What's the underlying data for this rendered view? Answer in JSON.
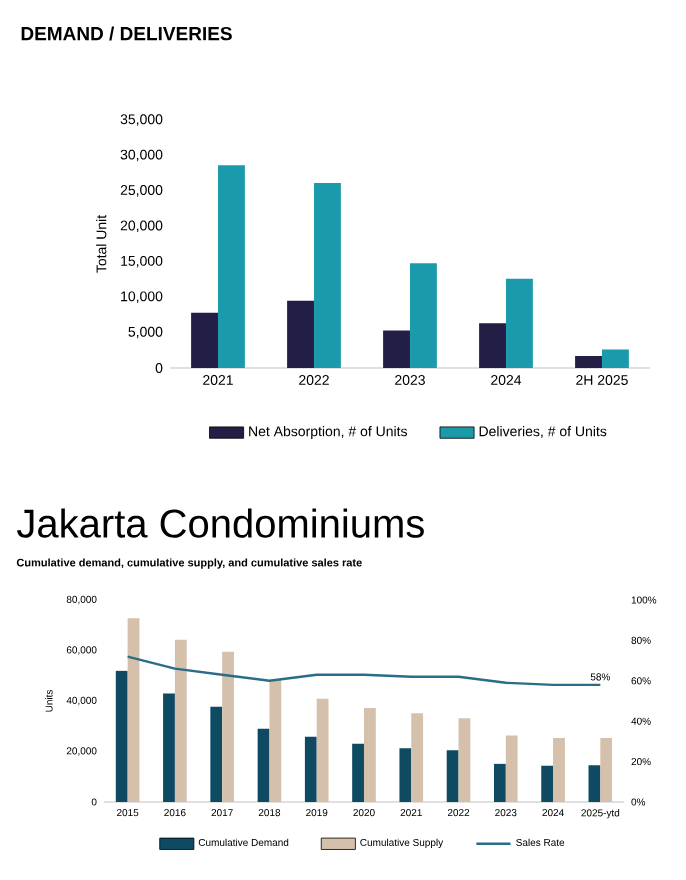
{
  "chart_data": [
    {
      "type": "bar",
      "title": "DEMAND / DELIVERIES",
      "ylabel": "Total Unit",
      "categories": [
        "2021",
        "2022",
        "2023",
        "2024",
        "2H 2025"
      ],
      "series": [
        {
          "name": "Net Absorption, # of Units",
          "color": "#221e45",
          "values": [
            7800,
            9500,
            5300,
            6300,
            1700
          ]
        },
        {
          "name": "Deliveries, # of Units",
          "color": "#1a9aaa",
          "values": [
            28600,
            26100,
            14800,
            12600,
            2600
          ]
        }
      ],
      "ylim": [
        0,
        35000
      ],
      "yticks": [
        0,
        {
          "value": 5000,
          "label": "5,000"
        },
        {
          "value": 10000,
          "label": "10,000"
        },
        {
          "value": 15000,
          "label": "15,000"
        },
        {
          "value": 20000,
          "label": "20,000"
        },
        {
          "value": 25000,
          "label": "25,000"
        },
        {
          "value": 30000,
          "label": "30,000"
        },
        {
          "value": 35000,
          "label": "35,000"
        }
      ],
      "legend": "bottom"
    },
    {
      "type": "bar",
      "title": "Jakarta Condominiums",
      "subtitle": "Cumulative demand, cumulative supply, and cumulative sales rate",
      "ylabel": "Units",
      "categories": [
        "2015",
        "2016",
        "2017",
        "2018",
        "2019",
        "2020",
        "2021",
        "2022",
        "2023",
        "2024",
        "2025-ytd"
      ],
      "series": [
        {
          "name": "Cumulative Demand",
          "color": "#0f4a63",
          "values": [
            52000,
            43000,
            37700,
            29000,
            25800,
            23100,
            21300,
            20500,
            15100,
            14400,
            14600
          ]
        },
        {
          "name": "Cumulative Supply",
          "color": "#d5c0ac",
          "values": [
            72800,
            64300,
            59500,
            48400,
            40900,
            37200,
            35100,
            33200,
            26300,
            25300,
            25300
          ]
        },
        {
          "name": "Sales Rate",
          "type": "line",
          "axis": "y2",
          "color": "#2a6d87",
          "values": [
            72,
            66,
            63,
            60,
            63,
            63,
            62,
            62,
            59,
            58,
            58
          ]
        }
      ],
      "ylim": [
        0,
        80000
      ],
      "yticks": [
        0,
        {
          "value": 20000,
          "label": "20,000"
        },
        {
          "value": 40000,
          "label": "40,000"
        },
        {
          "value": 60000,
          "label": "60,000"
        },
        {
          "value": 80000,
          "label": "80,000"
        }
      ],
      "y2lim": [
        0,
        100
      ],
      "y2ticks": [
        {
          "value": 0,
          "label": "0%"
        },
        {
          "value": 20,
          "label": "20%"
        },
        {
          "value": 40,
          "label": "40%"
        },
        {
          "value": 60,
          "label": "60%"
        },
        {
          "value": 80,
          "label": "80%"
        },
        {
          "value": 100,
          "label": "100%"
        }
      ],
      "annotations": [
        "58%"
      ],
      "legend": "bottom"
    }
  ]
}
